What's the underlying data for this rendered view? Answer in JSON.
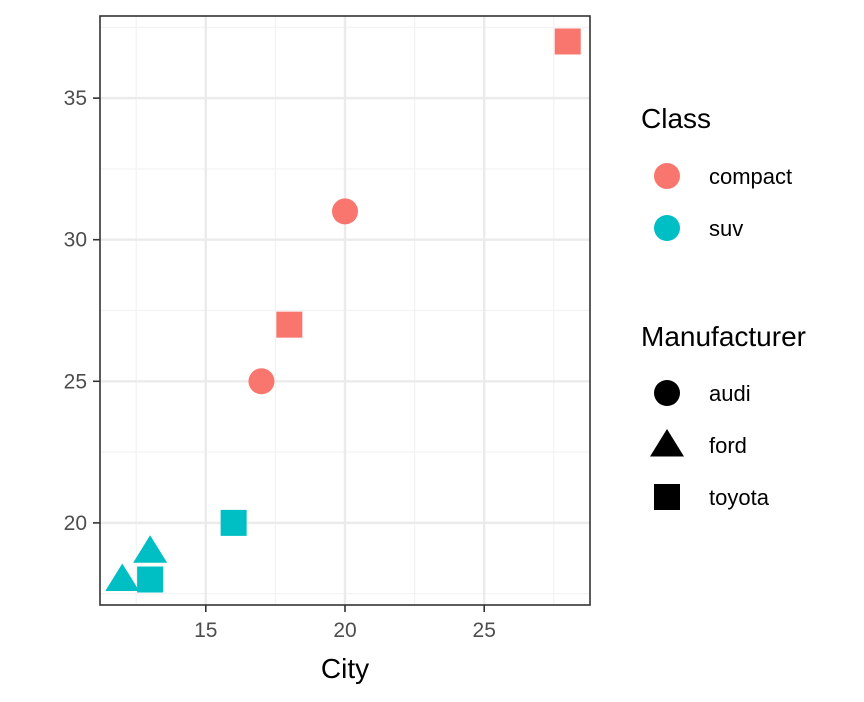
{
  "chart_data": {
    "type": "scatter",
    "title": "",
    "xlabel": "City",
    "ylabel": "",
    "xlim": [
      11.2,
      28.8
    ],
    "ylim": [
      17.1,
      37.9
    ],
    "x_ticks": [
      15,
      20,
      25
    ],
    "y_ticks": [
      20,
      25,
      30,
      35
    ],
    "grid": true,
    "legend_position": "right",
    "points": [
      {
        "x": 28,
        "y": 37,
        "class": "compact",
        "manufacturer": "toyota"
      },
      {
        "x": 20,
        "y": 31,
        "class": "compact",
        "manufacturer": "audi"
      },
      {
        "x": 18,
        "y": 27,
        "class": "compact",
        "manufacturer": "toyota"
      },
      {
        "x": 17,
        "y": 25,
        "class": "compact",
        "manufacturer": "audi"
      },
      {
        "x": 16,
        "y": 20,
        "class": "suv",
        "manufacturer": "toyota"
      },
      {
        "x": 13,
        "y": 19,
        "class": "suv",
        "manufacturer": "ford"
      },
      {
        "x": 12,
        "y": 18,
        "class": "suv",
        "manufacturer": "ford"
      },
      {
        "x": 13,
        "y": 18,
        "class": "suv",
        "manufacturer": "toyota"
      }
    ],
    "legends": {
      "class": {
        "title": "Class",
        "entries": [
          {
            "label": "compact",
            "color": "#F8766D"
          },
          {
            "label": "suv",
            "color": "#00BFC4"
          }
        ]
      },
      "manufacturer": {
        "title": "Manufacturer",
        "entries": [
          {
            "label": "audi",
            "shape": "circle"
          },
          {
            "label": "ford",
            "shape": "triangle"
          },
          {
            "label": "toyota",
            "shape": "square"
          }
        ]
      }
    }
  }
}
